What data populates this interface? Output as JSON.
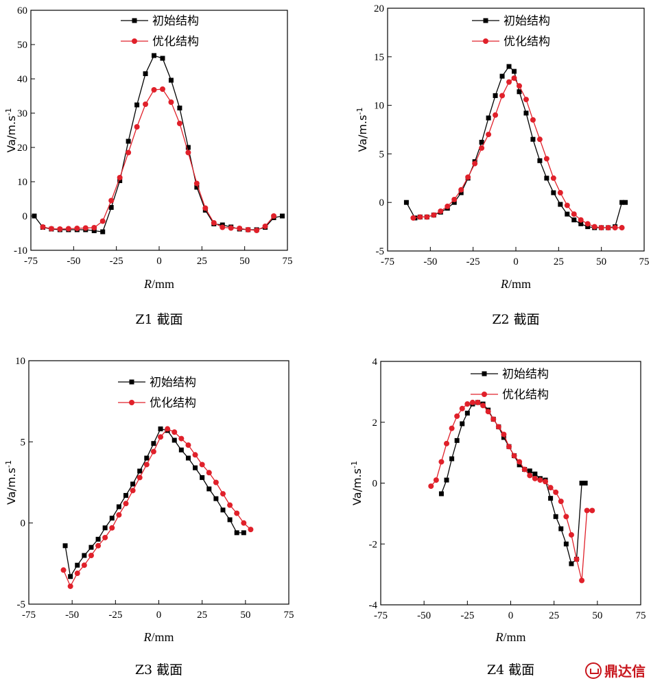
{
  "figure": {
    "watermark": "鼎达信"
  },
  "chart_data": [
    {
      "type": "line",
      "caption": "Z1 截面",
      "xlabel_prefix": "R",
      "xlabel_unit": "mm",
      "ylabel": "Va/m.s-1",
      "ylabel_main": "Va/m.s",
      "ylabel_sup": "-1",
      "xlim": [
        -75,
        75
      ],
      "ylim": [
        -10,
        60
      ],
      "xticks": [
        -75,
        -50,
        -25,
        0,
        25,
        50,
        75
      ],
      "yticks": [
        -10,
        0,
        10,
        20,
        30,
        40,
        50,
        60
      ],
      "legend_position": "top-center",
      "series": [
        {
          "name": "初始结构",
          "color": "#000000",
          "marker": "square",
          "x": [
            -73,
            -68,
            -63,
            -58,
            -53,
            -48,
            -43,
            -38,
            -33,
            -28,
            -23,
            -18,
            -13,
            -8,
            -3,
            2,
            7,
            12,
            17,
            22,
            27,
            32,
            37,
            42,
            47,
            52,
            57,
            62,
            67,
            72
          ],
          "y": [
            0,
            -3.3,
            -3.8,
            -4,
            -4,
            -4,
            -4,
            -4.3,
            -4.6,
            2.5,
            10.3,
            21.8,
            32.4,
            41.5,
            46.8,
            46,
            39.6,
            31.5,
            20,
            8.4,
            1.7,
            -2.3,
            -2.6,
            -3.2,
            -3.8,
            -4,
            -4,
            -3.3,
            -0.5,
            0
          ]
        },
        {
          "name": "优化结构",
          "color": "#e0202a",
          "marker": "circle",
          "x": [
            -68,
            -63,
            -58,
            -53,
            -48,
            -43,
            -38,
            -33,
            -28,
            -23,
            -18,
            -13,
            -8,
            -3,
            2,
            7,
            12,
            17,
            22,
            27,
            32,
            37,
            42,
            47,
            52,
            57,
            62,
            67
          ],
          "y": [
            -3.2,
            -3.7,
            -3.8,
            -3.7,
            -3.6,
            -3.5,
            -3.4,
            -1.5,
            4.5,
            11.2,
            18.5,
            26,
            32.6,
            36.8,
            37,
            33.2,
            27,
            18.5,
            9.5,
            2.3,
            -2,
            -3.3,
            -3.5,
            -3.6,
            -4,
            -4.2,
            -3,
            0
          ]
        }
      ]
    },
    {
      "type": "line",
      "caption": "Z2 截面",
      "xlabel_prefix": "R",
      "xlabel_unit": "mm",
      "ylabel": "Va/m.s-1",
      "ylabel_main": "Va/m.s",
      "ylabel_sup": "-1",
      "xlim": [
        -75,
        75
      ],
      "ylim": [
        -5,
        20
      ],
      "xticks": [
        -75,
        -50,
        -25,
        0,
        25,
        50,
        75
      ],
      "yticks": [
        -5,
        0,
        5,
        10,
        15,
        20
      ],
      "legend_position": "top-center",
      "series": [
        {
          "name": "初始结构",
          "color": "#000000",
          "marker": "square",
          "x": [
            -64,
            -59,
            -56,
            -52,
            -48,
            -44,
            -40,
            -36,
            -32,
            -28,
            -24,
            -20,
            -16,
            -12,
            -8,
            -4,
            -1,
            2,
            6,
            10,
            14,
            18,
            22,
            26,
            30,
            34,
            38,
            42,
            46,
            50,
            54,
            58,
            62,
            64
          ],
          "y": [
            0,
            -1.6,
            -1.5,
            -1.5,
            -1.3,
            -1,
            -0.6,
            0,
            1,
            2.5,
            4.2,
            6.2,
            8.7,
            11,
            13,
            14,
            13.5,
            11.4,
            9.2,
            6.5,
            4.3,
            2.5,
            1,
            -0.2,
            -1.2,
            -1.8,
            -2.2,
            -2.5,
            -2.6,
            -2.6,
            -2.6,
            -2.5,
            0,
            0
          ]
        },
        {
          "name": "优化结构",
          "color": "#e0202a",
          "marker": "circle",
          "x": [
            -60,
            -56,
            -52,
            -48,
            -44,
            -40,
            -36,
            -32,
            -28,
            -24,
            -20,
            -16,
            -12,
            -8,
            -4,
            -1,
            2,
            6,
            10,
            14,
            18,
            22,
            26,
            30,
            34,
            38,
            42,
            46,
            50,
            54,
            58,
            62
          ],
          "y": [
            -1.6,
            -1.5,
            -1.5,
            -1.3,
            -0.9,
            -0.4,
            0.3,
            1.3,
            2.6,
            4,
            5.6,
            7,
            9,
            11,
            12.4,
            12.8,
            12,
            10.6,
            8.5,
            6.5,
            4.5,
            2.5,
            1,
            -0.3,
            -1.2,
            -1.8,
            -2.2,
            -2.5,
            -2.6,
            -2.6,
            -2.6,
            -2.6
          ]
        }
      ]
    },
    {
      "type": "line",
      "caption": "Z3 截面",
      "xlabel_prefix": "R",
      "xlabel_unit": "mm",
      "ylabel": "Va/m.s-1",
      "ylabel_main": "Va/m.s",
      "ylabel_sup": "-1",
      "xlim": [
        -75,
        75
      ],
      "ylim": [
        -5,
        10
      ],
      "xticks": [
        -75,
        -50,
        -25,
        0,
        25,
        50,
        75
      ],
      "yticks": [
        -5,
        0,
        5,
        10
      ],
      "legend_position": "top-center",
      "series": [
        {
          "name": "初始结构",
          "color": "#000000",
          "marker": "square",
          "x": [
            -54,
            -51,
            -47,
            -43,
            -39,
            -35,
            -31,
            -27,
            -23,
            -19,
            -15,
            -11,
            -7,
            -3,
            1,
            5,
            9,
            13,
            17,
            21,
            25,
            29,
            33,
            37,
            41,
            45,
            49
          ],
          "y": [
            -1.4,
            -3.3,
            -2.6,
            -2,
            -1.5,
            -1,
            -0.3,
            0.3,
            1,
            1.7,
            2.4,
            3.2,
            4,
            4.9,
            5.8,
            5.7,
            5.1,
            4.5,
            4,
            3.4,
            2.8,
            2.1,
            1.5,
            0.8,
            0.2,
            -0.6,
            -0.6
          ]
        },
        {
          "name": "优化结构",
          "color": "#e0202a",
          "marker": "circle",
          "x": [
            -55,
            -51,
            -47,
            -43,
            -39,
            -35,
            -31,
            -27,
            -23,
            -19,
            -15,
            -11,
            -7,
            -3,
            1,
            5,
            9,
            13,
            17,
            21,
            25,
            29,
            33,
            37,
            41,
            45,
            49,
            53
          ],
          "y": [
            -2.9,
            -3.9,
            -3.1,
            -2.6,
            -2,
            -1.4,
            -0.9,
            -0.3,
            0.5,
            1.2,
            2,
            2.8,
            3.6,
            4.4,
            5.3,
            5.8,
            5.6,
            5.2,
            4.8,
            4.2,
            3.6,
            3.1,
            2.5,
            1.8,
            1.1,
            0.6,
            0,
            -0.4
          ]
        }
      ]
    },
    {
      "type": "line",
      "caption": "Z4 截面",
      "xlabel_prefix": "R",
      "xlabel_unit": "mm",
      "ylabel": "Va/m.s-1",
      "ylabel_main": "Va/m.s",
      "ylabel_sup": "-1",
      "xlim": [
        -75,
        75
      ],
      "ylim": [
        -4,
        4
      ],
      "xticks": [
        -75,
        -50,
        -25,
        0,
        25,
        50,
        75
      ],
      "yticks": [
        -4,
        -2,
        0,
        2,
        4
      ],
      "legend_position": "top-right",
      "series": [
        {
          "name": "初始结构",
          "color": "#000000",
          "marker": "square",
          "x": [
            -40,
            -37,
            -34,
            -31,
            -28,
            -25,
            -22,
            -19,
            -16,
            -13,
            -10,
            -7,
            -4,
            -1,
            2,
            5,
            8,
            11,
            14,
            17,
            20,
            23,
            26,
            29,
            32,
            35,
            38,
            41,
            43
          ],
          "y": [
            -0.35,
            0.1,
            0.8,
            1.4,
            1.95,
            2.3,
            2.6,
            2.65,
            2.6,
            2.4,
            2.1,
            1.85,
            1.5,
            1.2,
            0.9,
            0.6,
            0.45,
            0.4,
            0.3,
            0.15,
            0.1,
            -0.5,
            -1.1,
            -1.5,
            -2,
            -2.65,
            -2.5,
            0,
            0
          ]
        },
        {
          "name": "优化结构",
          "color": "#e0202a",
          "marker": "circle",
          "x": [
            -46,
            -43,
            -40,
            -37,
            -34,
            -31,
            -28,
            -25,
            -22,
            -19,
            -16,
            -13,
            -10,
            -7,
            -4,
            -1,
            2,
            5,
            8,
            11,
            14,
            17,
            20,
            23,
            26,
            29,
            32,
            35,
            38,
            41,
            44,
            47
          ],
          "y": [
            -0.1,
            0.1,
            0.7,
            1.3,
            1.8,
            2.2,
            2.45,
            2.6,
            2.65,
            2.65,
            2.55,
            2.35,
            2.1,
            1.85,
            1.6,
            1.2,
            0.9,
            0.7,
            0.45,
            0.25,
            0.15,
            0.1,
            0.05,
            -0.15,
            -0.3,
            -0.6,
            -1.1,
            -1.7,
            -2.5,
            -3.2,
            -0.9,
            -0.9
          ]
        }
      ]
    }
  ]
}
